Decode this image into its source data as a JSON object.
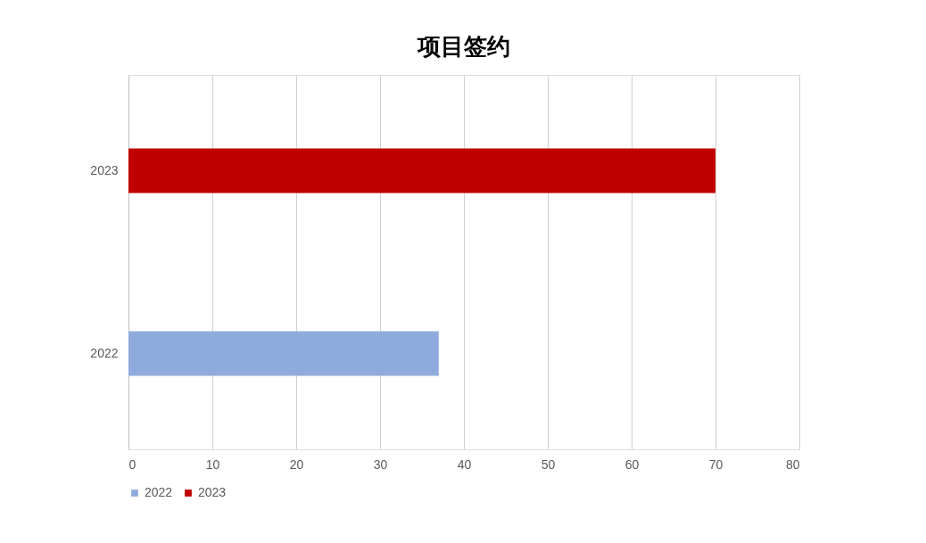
{
  "chart_data": {
    "type": "bar",
    "title": "项目签约",
    "orientation": "horizontal",
    "categories": [
      "2023",
      "2022"
    ],
    "series": [
      {
        "name": "2022",
        "color": "#8faadc",
        "values": [
          null,
          37
        ]
      },
      {
        "name": "2023",
        "color": "#c00000",
        "values": [
          70,
          null
        ]
      }
    ],
    "xlim": [
      0,
      80
    ],
    "xticks": [
      0,
      10,
      20,
      30,
      40,
      50,
      60,
      70,
      80
    ],
    "grid": "x",
    "legend": "bottom"
  }
}
